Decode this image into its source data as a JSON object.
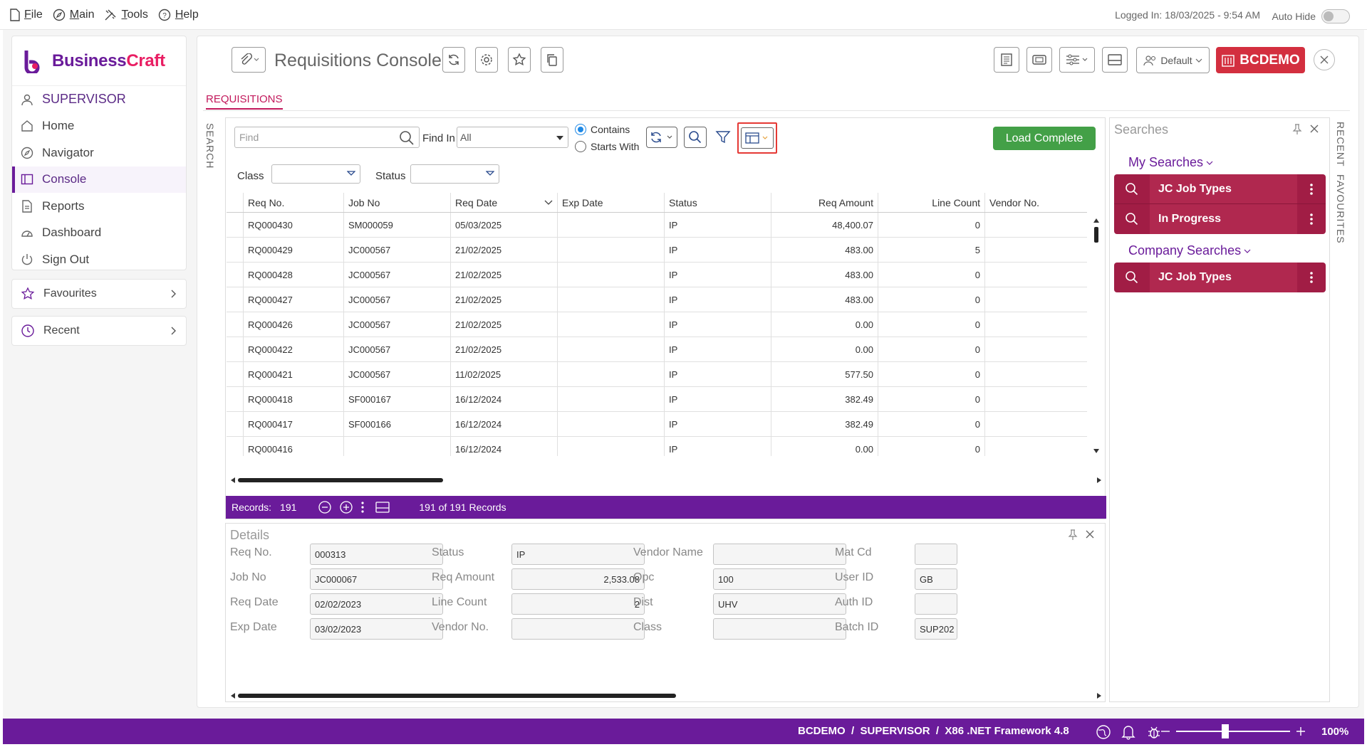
{
  "menubar": {
    "items": [
      {
        "label_rest": "ile",
        "label_first": "F"
      },
      {
        "label_rest": "ain",
        "label_first": "M"
      },
      {
        "label_rest": "ools",
        "label_first": "T"
      },
      {
        "label_rest": "elp",
        "label_first": "H"
      }
    ],
    "logged_in": "Logged In: 18/03/2025 - 9:54 AM",
    "auto_hide": "Auto Hide"
  },
  "brand": {
    "part1": "Business",
    "part2": "Craft"
  },
  "sidebar": {
    "user": "SUPERVISOR",
    "items": [
      {
        "label": "Home",
        "icon": "home-icon"
      },
      {
        "label": "Navigator",
        "icon": "compass-icon"
      },
      {
        "label": "Console",
        "icon": "console-icon"
      },
      {
        "label": "Reports",
        "icon": "reports-icon"
      },
      {
        "label": "Dashboard",
        "icon": "dashboard-icon"
      },
      {
        "label": "Sign Out",
        "icon": "power-icon"
      }
    ],
    "favourites": "Favourites",
    "recent": "Recent"
  },
  "header": {
    "title": "Requisitions Console",
    "default_label": "Default",
    "company_label": "BCDEMO"
  },
  "tabs": {
    "active": "REQUISITIONS",
    "side_search": "SEARCH",
    "side_recent": "RECENT",
    "side_favourites": "FAVOURITES"
  },
  "search": {
    "find_placeholder": "Find",
    "find_in_label": "Find In",
    "find_in_value": "All",
    "contains": "Contains",
    "starts_with": "Starts With",
    "load_complete": "Load Complete",
    "class_label": "Class",
    "status_label": "Status"
  },
  "table": {
    "columns": [
      "Req No.",
      "Job No",
      "Req Date",
      "Exp Date",
      "Status",
      "Req Amount",
      "Line Count",
      "Vendor No."
    ],
    "rows": [
      [
        "RQ000430",
        "SM000059",
        "05/03/2025",
        "",
        "IP",
        "48,400.07",
        "0",
        ""
      ],
      [
        "RQ000429",
        "JC000567",
        "21/02/2025",
        "",
        "IP",
        "483.00",
        "5",
        ""
      ],
      [
        "RQ000428",
        "JC000567",
        "21/02/2025",
        "",
        "IP",
        "483.00",
        "0",
        ""
      ],
      [
        "RQ000427",
        "JC000567",
        "21/02/2025",
        "",
        "IP",
        "483.00",
        "0",
        ""
      ],
      [
        "RQ000426",
        "JC000567",
        "21/02/2025",
        "",
        "IP",
        "0.00",
        "0",
        ""
      ],
      [
        "RQ000422",
        "JC000567",
        "21/02/2025",
        "",
        "IP",
        "0.00",
        "0",
        ""
      ],
      [
        "RQ000421",
        "JC000567",
        "11/02/2025",
        "",
        "IP",
        "577.50",
        "0",
        ""
      ],
      [
        "RQ000418",
        "SF000167",
        "16/12/2024",
        "",
        "IP",
        "382.49",
        "0",
        ""
      ],
      [
        "RQ000417",
        "SF000166",
        "16/12/2024",
        "",
        "IP",
        "382.49",
        "0",
        ""
      ],
      [
        "RQ000416",
        "",
        "16/12/2024",
        "",
        "IP",
        "0.00",
        "0",
        ""
      ]
    ]
  },
  "records": {
    "label": "Records:",
    "count": "191",
    "summary": "191 of 191 Records"
  },
  "details": {
    "title": "Details",
    "fields": [
      {
        "label": "Req No.",
        "value": "000313"
      },
      {
        "label": "Job No",
        "value": "JC000067"
      },
      {
        "label": "Req Date",
        "value": "02/02/2023"
      },
      {
        "label": "Exp Date",
        "value": "03/02/2023"
      },
      {
        "label": "Status",
        "value": "IP"
      },
      {
        "label": "Req Amount",
        "value": "2,533.08"
      },
      {
        "label": "Line Count",
        "value": "2"
      },
      {
        "label": "Vendor No.",
        "value": ""
      },
      {
        "label": "Vendor Name",
        "value": ""
      },
      {
        "label": "Opc",
        "value": "100"
      },
      {
        "label": "Dist",
        "value": "UHV"
      },
      {
        "label": "Class",
        "value": ""
      },
      {
        "label": "Mat Cd",
        "value": ""
      },
      {
        "label": "User ID",
        "value": "GB"
      },
      {
        "label": "Auth ID",
        "value": ""
      },
      {
        "label": "Batch ID",
        "value": "SUP202"
      }
    ]
  },
  "searches": {
    "title": "Searches",
    "my_searches": "My Searches",
    "my_items": [
      "JC Job Types",
      "In Progress"
    ],
    "company_searches": "Company Searches",
    "company_items": [
      "JC Job Types"
    ]
  },
  "statusbar": {
    "text": "BCDEMO  /  SUPERVISOR  /  X86 .NET Framework 4.8",
    "zoom": "100%"
  },
  "colors": {
    "brand_purple": "#6a1b9a",
    "accent_red": "#d32f3f",
    "search_card": "#a11d45",
    "load_green": "#43a047"
  }
}
